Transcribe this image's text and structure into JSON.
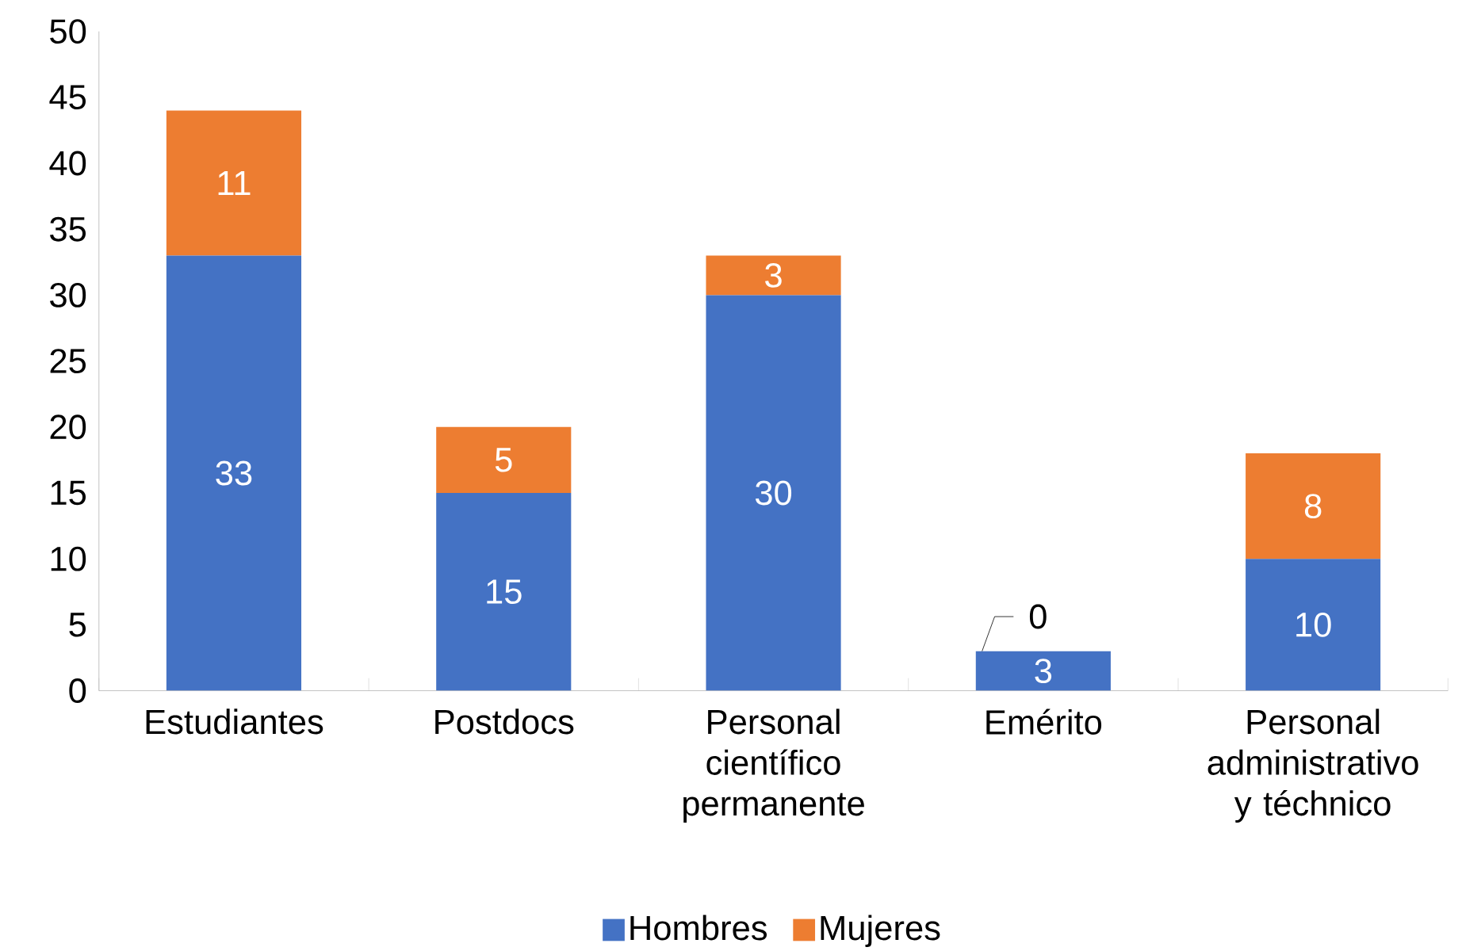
{
  "chart_data": {
    "type": "bar",
    "stacked": true,
    "categories": [
      "Estudiantes",
      "Postdocs",
      "Personal científico permanente",
      "Emérito",
      "Personal administrativo y téchnico"
    ],
    "series": [
      {
        "name": "Hombres",
        "color": "#4472c4",
        "values": [
          33,
          15,
          30,
          3,
          10
        ]
      },
      {
        "name": "Mujeres",
        "color": "#ed7d31",
        "values": [
          11,
          5,
          3,
          0,
          8
        ]
      }
    ],
    "ylim": [
      0,
      50
    ],
    "yticks": [
      0,
      5,
      10,
      15,
      20,
      25,
      30,
      35,
      40,
      45,
      50
    ],
    "grid": false,
    "legend": "bottom",
    "data_labels": true
  }
}
